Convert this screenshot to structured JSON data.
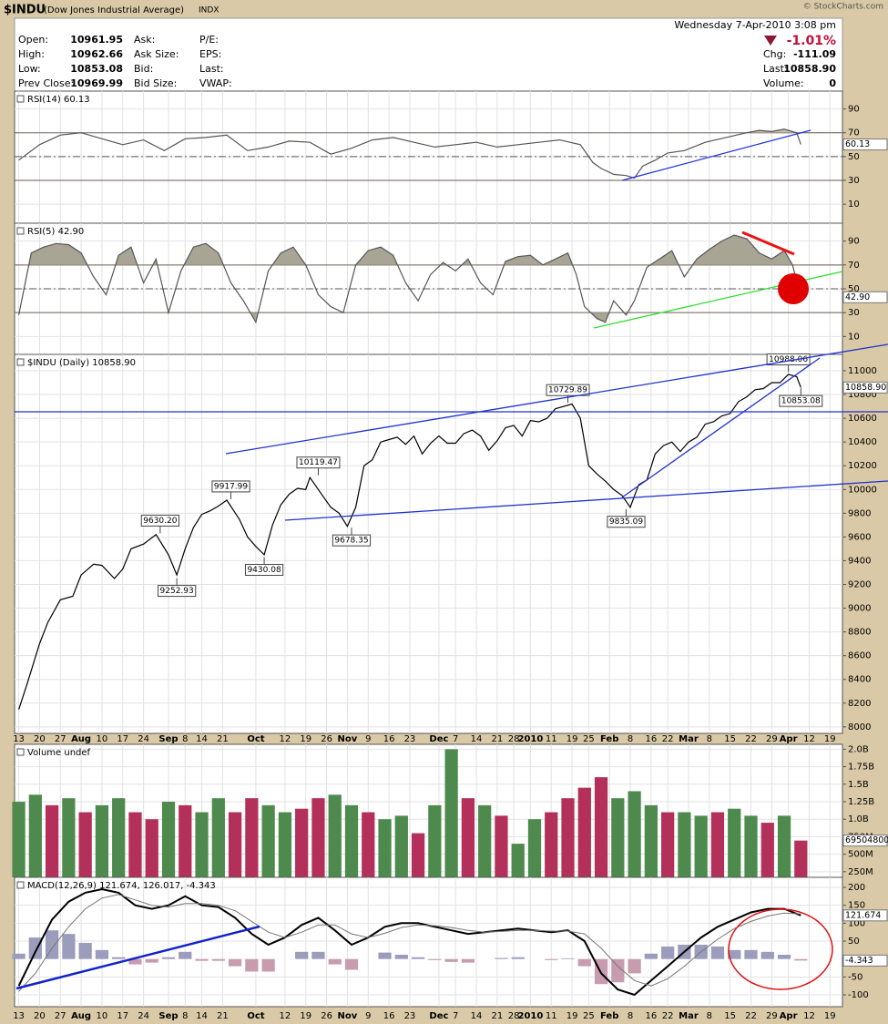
{
  "header": {
    "symbol": "$INDU",
    "name": "(Dow Jones Industrial Average)",
    "exchange": "INDX",
    "copyright": "© StockCharts.com",
    "datetime": "Wednesday  7-Apr-2010  3:08 pm"
  },
  "quote": {
    "left": [
      {
        "label": "Open:",
        "value": "10961.95"
      },
      {
        "label": "High:",
        "value": "10962.66"
      },
      {
        "label": "Low:",
        "value": "10853.08"
      },
      {
        "label": "Prev Close:",
        "value": "10969.99"
      }
    ],
    "middle": [
      "Ask:",
      "Ask Size:",
      "Bid:",
      "Bid Size:"
    ],
    "right": [
      "P/E:",
      "EPS:",
      "Last:",
      "VWAP:"
    ],
    "change_pct": "-1.01%",
    "stats": [
      {
        "label": "Chg:",
        "value": "-111.09"
      },
      {
        "label": "Last:",
        "value": "10858.90"
      },
      {
        "label": "Volume:",
        "value": "0"
      }
    ]
  },
  "chart_data": [
    {
      "type": "line",
      "title": "RSI(14) 60.13",
      "ylim": [
        -6,
        105
      ],
      "yticks": [
        10,
        30,
        50,
        70,
        90
      ],
      "bands": [
        30,
        70
      ],
      "midline": 50,
      "band_fill": "#c4c0ae",
      "grid": true,
      "x": [
        0,
        5,
        10,
        15,
        20,
        25,
        30,
        35,
        40,
        45,
        50,
        55,
        60,
        65,
        70,
        75,
        80,
        85,
        90,
        95,
        100,
        105,
        110,
        115,
        120,
        125,
        130,
        135,
        138,
        140,
        143,
        146,
        148,
        150,
        153,
        156,
        160,
        165,
        170,
        175,
        178,
        181,
        184,
        187,
        188
      ],
      "series": [
        {
          "color": "#555555",
          "values": [
            47,
            60,
            68,
            70,
            65,
            60,
            64,
            55,
            65,
            66,
            68,
            55,
            58,
            63,
            62,
            52,
            57,
            64,
            66,
            62,
            58,
            60,
            62,
            58,
            60,
            62,
            64,
            60,
            45,
            40,
            35,
            34,
            32,
            42,
            47,
            53,
            55,
            62,
            66,
            70,
            72,
            71,
            73,
            70,
            60.13
          ],
          "value_box": "60.13"
        }
      ]
    },
    {
      "type": "line",
      "title": "RSI(5) 42.90",
      "ylim": [
        -5,
        105
      ],
      "yticks": [
        10,
        30,
        50,
        70,
        90
      ],
      "bands": [
        30,
        70
      ],
      "midline": 50,
      "band_fill": "#a9a594",
      "grid": true,
      "x": [
        0,
        3,
        6,
        9,
        12,
        15,
        18,
        21,
        24,
        27,
        30,
        33,
        36,
        39,
        42,
        45,
        48,
        51,
        54,
        57,
        60,
        63,
        66,
        69,
        72,
        75,
        78,
        81,
        84,
        87,
        90,
        93,
        96,
        99,
        102,
        105,
        108,
        111,
        114,
        117,
        120,
        123,
        126,
        129,
        132,
        134,
        136,
        139,
        141,
        143,
        146,
        148,
        151,
        154,
        157,
        160,
        163,
        166,
        169,
        172,
        175,
        178,
        181,
        184,
        186,
        188
      ],
      "series": [
        {
          "color": "#555555",
          "values": [
            28,
            80,
            85,
            88,
            87,
            80,
            60,
            45,
            78,
            85,
            55,
            75,
            30,
            65,
            85,
            88,
            80,
            55,
            40,
            22,
            65,
            80,
            85,
            70,
            45,
            35,
            30,
            70,
            82,
            85,
            78,
            55,
            40,
            62,
            72,
            65,
            75,
            55,
            45,
            73,
            77,
            78,
            70,
            75,
            80,
            62,
            35,
            25,
            22,
            40,
            28,
            40,
            68,
            75,
            82,
            60,
            75,
            83,
            90,
            95,
            92,
            80,
            75,
            82,
            70,
            42.9
          ],
          "value_box": "42.90"
        }
      ]
    },
    {
      "type": "line",
      "title": "$INDU (Daily) 10858.90",
      "ylim": [
        7945,
        11138
      ],
      "yticks": [
        8000,
        8200,
        8400,
        8600,
        8800,
        9000,
        9200,
        9400,
        9600,
        9800,
        10000,
        10200,
        10400,
        10600,
        10800,
        11000
      ],
      "grid": true,
      "xlim": [
        -1,
        198
      ],
      "xticks": [
        {
          "value": 0,
          "label": "13"
        },
        {
          "value": 5,
          "label": "20"
        },
        {
          "value": 10,
          "label": "27"
        },
        {
          "value": 15,
          "label": "Aug"
        },
        {
          "value": 20,
          "label": "10"
        },
        {
          "value": 25,
          "label": "17"
        },
        {
          "value": 30,
          "label": "24"
        },
        {
          "value": 36,
          "label": "Sep"
        },
        {
          "value": 40,
          "label": "8"
        },
        {
          "value": 44,
          "label": "14"
        },
        {
          "value": 49,
          "label": "21"
        },
        {
          "value": 57,
          "label": "Oct"
        },
        {
          "value": 64,
          "label": "12"
        },
        {
          "value": 69,
          "label": "19"
        },
        {
          "value": 74,
          "label": "26"
        },
        {
          "value": 79,
          "label": "Nov"
        },
        {
          "value": 84,
          "label": "9"
        },
        {
          "value": 89,
          "label": "16"
        },
        {
          "value": 94,
          "label": "23"
        },
        {
          "value": 101,
          "label": "Dec"
        },
        {
          "value": 105,
          "label": "7"
        },
        {
          "value": 110,
          "label": "14"
        },
        {
          "value": 115,
          "label": "21"
        },
        {
          "value": 119,
          "label": "28"
        },
        {
          "value": 123,
          "label": "2010"
        },
        {
          "value": 128,
          "label": "11"
        },
        {
          "value": 133,
          "label": "19"
        },
        {
          "value": 137,
          "label": "25"
        },
        {
          "value": 142,
          "label": "Feb"
        },
        {
          "value": 147,
          "label": "8"
        },
        {
          "value": 152,
          "label": "16"
        },
        {
          "value": 156,
          "label": "22"
        },
        {
          "value": 161,
          "label": "Mar"
        },
        {
          "value": 166,
          "label": "8"
        },
        {
          "value": 171,
          "label": "15"
        },
        {
          "value": 176,
          "label": "22"
        },
        {
          "value": 181,
          "label": "29"
        },
        {
          "value": 185,
          "label": "Apr"
        },
        {
          "value": 190,
          "label": "12"
        },
        {
          "value": 195,
          "label": "19"
        }
      ],
      "x": [
        0,
        2,
        5,
        7,
        10,
        13,
        15,
        18,
        20,
        23,
        25,
        27,
        30,
        33,
        36,
        38,
        40,
        42,
        44,
        46,
        48,
        50,
        53,
        55,
        57,
        59,
        61,
        63,
        65,
        67,
        69,
        70,
        73,
        75,
        77,
        79,
        81,
        83,
        85,
        87,
        89,
        91,
        93,
        95,
        97,
        99,
        101,
        103,
        105,
        107,
        109,
        111,
        113,
        115,
        117,
        119,
        121,
        123,
        125,
        127,
        129,
        131,
        133,
        135,
        137,
        139,
        141,
        143,
        145,
        147,
        149,
        151,
        153,
        155,
        157,
        159,
        161,
        163,
        165,
        167,
        169,
        171,
        173,
        175,
        177,
        179,
        181,
        183,
        185,
        187,
        188
      ],
      "series": [
        {
          "color": "#000000",
          "values": [
            8146,
            8360,
            8700,
            8880,
            9070,
            9100,
            9280,
            9370,
            9360,
            9250,
            9330,
            9500,
            9540,
            9620,
            9450,
            9280,
            9500,
            9680,
            9790,
            9820,
            9860,
            9910,
            9750,
            9600,
            9520,
            9450,
            9700,
            9870,
            9960,
            10010,
            10000,
            10100,
            9950,
            9850,
            9800,
            9690,
            9850,
            10200,
            10250,
            10400,
            10420,
            10440,
            10380,
            10450,
            10300,
            10390,
            10450,
            10390,
            10390,
            10470,
            10500,
            10450,
            10330,
            10410,
            10520,
            10540,
            10450,
            10580,
            10570,
            10600,
            10680,
            10700,
            10720,
            10600,
            10200,
            10130,
            10070,
            10000,
            9950,
            9850,
            10040,
            10080,
            10300,
            10370,
            10400,
            10320,
            10400,
            10440,
            10550,
            10570,
            10620,
            10640,
            10740,
            10780,
            10840,
            10850,
            10900,
            10900,
            10970,
            10950,
            10858.9
          ],
          "value_box": "10858.90"
        }
      ],
      "annotations": [
        {
          "x": 34,
          "value": 9630.2,
          "label": "9630.20",
          "position": "above"
        },
        {
          "x": 38,
          "value": 9252.93,
          "label": "9252.93",
          "position": "below"
        },
        {
          "x": 51,
          "value": 9917.99,
          "label": "9917.99",
          "position": "above"
        },
        {
          "x": 59,
          "value": 9430.08,
          "label": "9430.08",
          "position": "below"
        },
        {
          "x": 72,
          "value": 10119.47,
          "label": "10119.47",
          "position": "above"
        },
        {
          "x": 80,
          "value": 9678.35,
          "label": "9678.35",
          "position": "below"
        },
        {
          "x": 132,
          "value": 10729.89,
          "label": "10729.89",
          "position": "above"
        },
        {
          "x": 146,
          "value": 9835.09,
          "label": "9835.09",
          "position": "below"
        },
        {
          "x": 185,
          "value": 10988.06,
          "label": "10988.06",
          "position": "above"
        },
        {
          "x": 188,
          "value": 10853.08,
          "label": "10853.08",
          "position": "below"
        }
      ]
    },
    {
      "type": "bar",
      "title": "Volume undef",
      "ylim": [
        0.17,
        2.07
      ],
      "grid": true,
      "yticks": [
        {
          "value": 0.25,
          "label": "250M"
        },
        {
          "value": 0.5,
          "label": "500M"
        },
        {
          "value": 0.75,
          "label": "750M"
        },
        {
          "value": 1,
          "label": "1.0B"
        },
        {
          "value": 1.25,
          "label": "1.25B"
        },
        {
          "value": 1.5,
          "label": "1.5B"
        },
        {
          "value": 1.75,
          "label": "1.75B"
        },
        {
          "value": 2,
          "label": "2.0B"
        }
      ],
      "x": [
        0,
        4,
        8,
        12,
        16,
        20,
        24,
        28,
        32,
        36,
        40,
        44,
        48,
        52,
        56,
        60,
        64,
        68,
        72,
        76,
        80,
        84,
        88,
        92,
        96,
        100,
        104,
        108,
        112,
        116,
        120,
        124,
        128,
        132,
        136,
        140,
        144,
        148,
        152,
        156,
        160,
        164,
        168,
        172,
        176,
        180,
        184,
        188
      ],
      "series": [
        {
          "values": [
            1.25,
            1.35,
            1.2,
            1.3,
            1.1,
            1.2,
            1.3,
            1.1,
            1.0,
            1.25,
            1.2,
            1.1,
            1.3,
            1.1,
            1.3,
            1.2,
            1.1,
            1.15,
            1.3,
            1.35,
            1.2,
            1.1,
            1.0,
            1.05,
            0.8,
            1.2,
            2.0,
            1.3,
            1.2,
            1.05,
            0.65,
            1.0,
            1.1,
            1.3,
            1.45,
            1.6,
            1.3,
            1.4,
            1.2,
            1.1,
            1.1,
            1.05,
            1.1,
            1.15,
            1.05,
            0.95,
            1.05,
            0.695048
          ],
          "value_box": "695048000",
          "colors": [
            "#4e8a4e",
            "#4e8a4e",
            "#b3305a",
            "#4e8a4e",
            "#b3305a",
            "#4e8a4e",
            "#4e8a4e",
            "#b3305a",
            "#b3305a",
            "#4e8a4e",
            "#b3305a",
            "#4e8a4e",
            "#4e8a4e",
            "#b3305a",
            "#b3305a",
            "#4e8a4e",
            "#4e8a4e",
            "#b3305a",
            "#b3305a",
            "#4e8a4e",
            "#4e8a4e",
            "#b3305a",
            "#4e8a4e",
            "#4e8a4e",
            "#b3305a",
            "#4e8a4e",
            "#4e8a4e",
            "#b3305a",
            "#4e8a4e",
            "#b3305a",
            "#4e8a4e",
            "#4e8a4e",
            "#b3305a",
            "#b3305a",
            "#b3305a",
            "#b3305a",
            "#4e8a4e",
            "#4e8a4e",
            "#4e8a4e",
            "#b3305a",
            "#4e8a4e",
            "#4e8a4e",
            "#b3305a",
            "#4e8a4e",
            "#4e8a4e",
            "#b3305a",
            "#4e8a4e",
            "#b3305a"
          ]
        }
      ]
    },
    {
      "type": "combo",
      "title": "MACD(12,26,9) 121.674, 126.017, -4.343",
      "ylim": [
        -133,
        228
      ],
      "yticks": [
        -100,
        -50,
        50,
        100,
        150,
        200
      ],
      "grid": true,
      "x": [
        0,
        4,
        8,
        12,
        16,
        20,
        24,
        28,
        32,
        36,
        40,
        44,
        48,
        52,
        56,
        60,
        64,
        68,
        72,
        76,
        80,
        84,
        88,
        92,
        96,
        100,
        104,
        108,
        112,
        116,
        120,
        124,
        128,
        132,
        136,
        140,
        144,
        148,
        152,
        156,
        160,
        164,
        168,
        172,
        176,
        180,
        184,
        188
      ],
      "series": [
        {
          "style": "histogram",
          "color": "#9c9cbc",
          "negative_color": "#c79cae",
          "values": [
            15,
            60,
            80,
            70,
            45,
            25,
            5,
            -15,
            -10,
            5,
            20,
            -5,
            -5,
            -20,
            -35,
            -35,
            0,
            20,
            20,
            -15,
            -30,
            0,
            18,
            12,
            5,
            -3,
            -8,
            -10,
            0,
            3,
            5,
            0,
            -3,
            2,
            -20,
            -70,
            -65,
            -40,
            15,
            35,
            40,
            40,
            35,
            25,
            25,
            20,
            12,
            -4.343
          ],
          "value_box": "-4.343"
        },
        {
          "style": "line",
          "color": "#000000",
          "width": 2,
          "values": [
            -75,
            20,
            110,
            160,
            185,
            195,
            185,
            150,
            140,
            150,
            175,
            150,
            145,
            115,
            70,
            40,
            60,
            95,
            115,
            80,
            40,
            60,
            90,
            100,
            100,
            90,
            80,
            70,
            75,
            80,
            85,
            80,
            75,
            80,
            50,
            -40,
            -85,
            -100,
            -60,
            -20,
            20,
            60,
            90,
            110,
            130,
            140,
            140,
            121.674
          ],
          "value_box": "121.674"
        },
        {
          "style": "line",
          "color": "#777777",
          "width": 1,
          "values": [
            -90,
            -40,
            30,
            90,
            140,
            170,
            180,
            165,
            150,
            145,
            155,
            155,
            150,
            135,
            105,
            75,
            60,
            75,
            95,
            95,
            70,
            60,
            72,
            88,
            95,
            93,
            88,
            80,
            75,
            77,
            80,
            80,
            78,
            78,
            70,
            30,
            -20,
            -60,
            -75,
            -55,
            -20,
            20,
            55,
            85,
            105,
            120,
            128,
            126.017
          ]
        }
      ]
    }
  ]
}
